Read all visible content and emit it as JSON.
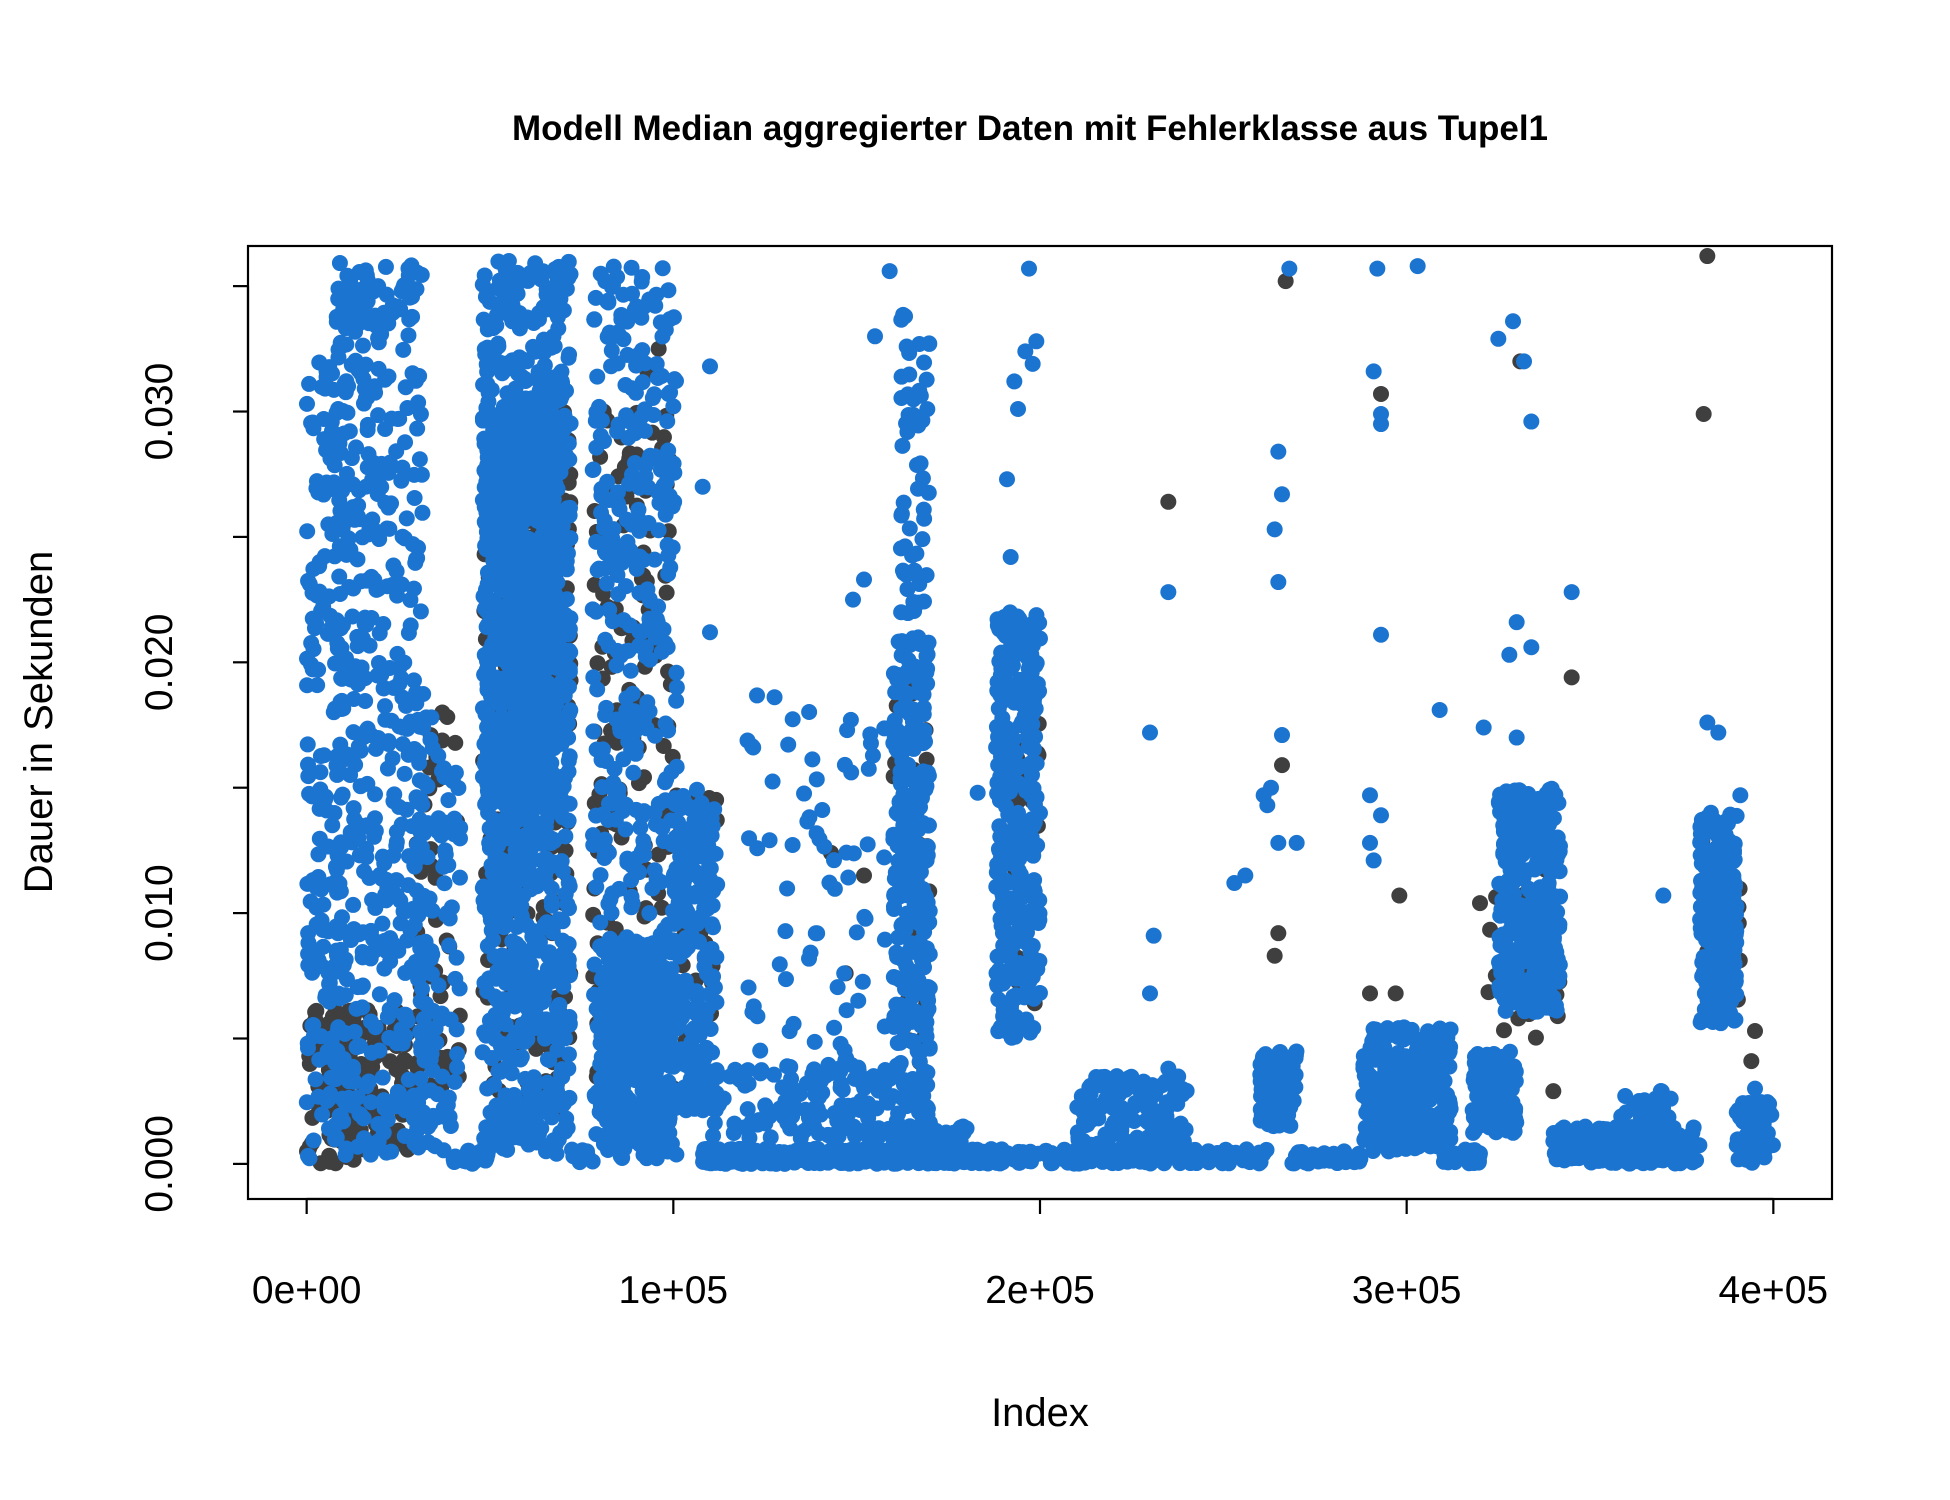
{
  "chart_data": {
    "type": "scatter",
    "title": "Modell  Median aggregierter Daten mit Fehlerklasse aus Tupel1",
    "xlabel": "Index",
    "ylabel": "Dauer in Sekunden",
    "xlim": [
      -16000,
      416000
    ],
    "ylim": [
      -0.0014,
      0.0366
    ],
    "x_ticks": [
      0,
      100000,
      200000,
      300000,
      400000
    ],
    "x_tick_labels": [
      "0e+00",
      "1e+05",
      "2e+05",
      "3e+05",
      "4e+05"
    ],
    "y_ticks": [
      0,
      0.005,
      0.01,
      0.015,
      0.02,
      0.025,
      0.03,
      0.035
    ],
    "y_tick_labels": [
      "0.000",
      "",
      "0.010",
      "",
      "0.020",
      "",
      "0.030",
      ""
    ],
    "colors": {
      "dark": "#3f3f3f",
      "blue": "#1b74d0"
    },
    "series": [
      {
        "color": "#3f3f3f",
        "clusters": [
          [
            0,
            30000,
            0,
            0.0062,
            170
          ],
          [
            30000,
            42000,
            0.003,
            0.018,
            45
          ],
          [
            48000,
            72000,
            0.002,
            0.03,
            260
          ],
          [
            78000,
            100000,
            0.003,
            0.03,
            140
          ],
          [
            100000,
            112000,
            0.004,
            0.015,
            35
          ],
          [
            160000,
            170000,
            0.003,
            0.02,
            35
          ],
          [
            190000,
            200000,
            0.006,
            0.02,
            30
          ],
          [
            322000,
            342000,
            0.005,
            0.013,
            35
          ],
          [
            380000,
            392000,
            0.006,
            0.013,
            25
          ]
        ],
        "points": [
          [
            235000,
            0.0264
          ],
          [
            345000,
            0.0194
          ],
          [
            381000,
            0.0299
          ],
          [
            382000,
            0.0362
          ],
          [
            267000,
            0.0352
          ],
          [
            293000,
            0.0307
          ],
          [
            298000,
            0.0107
          ],
          [
            297000,
            0.0068
          ],
          [
            290000,
            0.0068
          ],
          [
            395000,
            0.0053
          ],
          [
            394000,
            0.0041
          ],
          [
            331000,
            0.032
          ],
          [
            266000,
            0.0159
          ],
          [
            265000,
            0.0092
          ],
          [
            264000,
            0.0083
          ],
          [
            152000,
            0.0115
          ],
          [
            147000,
            0.0076
          ],
          [
            143000,
            0.0124
          ],
          [
            37000,
            0.018
          ],
          [
            81000,
            0.03
          ],
          [
            93000,
            0.0315
          ],
          [
            96000,
            0.0325
          ],
          [
            320000,
            0.0104
          ],
          [
            340000,
            0.0029
          ]
        ]
      },
      {
        "color": "#1b74d0",
        "clusters": [
          [
            0,
            10000,
            0.0002,
            0.032,
            190
          ],
          [
            8000,
            32000,
            0.0002,
            0.036,
            480
          ],
          [
            30000,
            42000,
            0.0002,
            0.018,
            110
          ],
          [
            40000,
            50000,
            0,
            0.0006,
            30
          ],
          [
            48000,
            72000,
            0.0004,
            0.036,
            1000
          ],
          [
            49000,
            68000,
            0.014,
            0.03,
            500
          ],
          [
            72000,
            78000,
            0,
            0.0006,
            20
          ],
          [
            78000,
            101000,
            0.0002,
            0.036,
            420
          ],
          [
            80000,
            100000,
            0.0005,
            0.009,
            350
          ],
          [
            100000,
            112000,
            0.002,
            0.015,
            200
          ],
          [
            108000,
            190000,
            0,
            0.0006,
            420
          ],
          [
            110000,
            160000,
            0.001,
            0.004,
            130
          ],
          [
            120000,
            158000,
            0.004,
            0.019,
            70
          ],
          [
            160000,
            170000,
            0.0005,
            0.021,
            340
          ],
          [
            162000,
            170000,
            0.021,
            0.034,
            55
          ],
          [
            170000,
            180000,
            0,
            0.0015,
            50
          ],
          [
            188000,
            200000,
            0.005,
            0.022,
            330
          ],
          [
            190000,
            200000,
            0.0,
            0.0005,
            20
          ],
          [
            200000,
            262000,
            0,
            0.0006,
            160
          ],
          [
            210000,
            240000,
            0.0005,
            0.0035,
            120
          ],
          [
            260000,
            270000,
            0.0015,
            0.0045,
            130
          ],
          [
            268000,
            288000,
            0,
            0.0005,
            50
          ],
          [
            288000,
            312000,
            0.0005,
            0.0055,
            280
          ],
          [
            310000,
            320000,
            0,
            0.0006,
            30
          ],
          [
            318000,
            330000,
            0.0012,
            0.0045,
            140
          ],
          [
            325000,
            342000,
            0.006,
            0.015,
            320
          ],
          [
            340000,
            380000,
            0,
            0.0015,
            190
          ],
          [
            358000,
            372000,
            0,
            0.003,
            50
          ],
          [
            380000,
            390000,
            0.0055,
            0.014,
            290
          ],
          [
            390000,
            400000,
            0,
            0.0025,
            60
          ]
        ],
        "points": [
          [
            265000,
            0.0284
          ],
          [
            266000,
            0.0267
          ],
          [
            264000,
            0.0253
          ],
          [
            265000,
            0.0232
          ],
          [
            263000,
            0.015
          ],
          [
            262000,
            0.0143
          ],
          [
            265000,
            0.0128
          ],
          [
            261000,
            0.0147
          ],
          [
            266000,
            0.0171
          ],
          [
            268000,
            0.0357
          ],
          [
            270000,
            0.0128
          ],
          [
            256000,
            0.0115
          ],
          [
            253000,
            0.0112
          ],
          [
            291000,
            0.0316
          ],
          [
            293000,
            0.0299
          ],
          [
            293000,
            0.0295
          ],
          [
            292000,
            0.0357
          ],
          [
            293000,
            0.0211
          ],
          [
            290000,
            0.0147
          ],
          [
            291000,
            0.0121
          ],
          [
            293000,
            0.0139
          ],
          [
            290000,
            0.0128
          ],
          [
            303000,
            0.0358
          ],
          [
            309000,
            0.0181
          ],
          [
            325000,
            0.0329
          ],
          [
            329000,
            0.0336
          ],
          [
            332000,
            0.032
          ],
          [
            334000,
            0.0296
          ],
          [
            330000,
            0.0216
          ],
          [
            334000,
            0.0206
          ],
          [
            328000,
            0.0203
          ],
          [
            345000,
            0.0228
          ],
          [
            321000,
            0.0174
          ],
          [
            330000,
            0.017
          ],
          [
            382000,
            0.0176
          ],
          [
            385000,
            0.0172
          ],
          [
            370000,
            0.0107
          ],
          [
            235000,
            0.0228
          ],
          [
            230000,
            0.0172
          ],
          [
            231000,
            0.0091
          ],
          [
            230000,
            0.0068
          ],
          [
            235000,
            0.0038
          ],
          [
            197000,
            0.0357
          ],
          [
            199000,
            0.0328
          ],
          [
            198000,
            0.0319
          ],
          [
            196000,
            0.0324
          ],
          [
            193000,
            0.0312
          ],
          [
            194000,
            0.0301
          ],
          [
            191000,
            0.0273
          ],
          [
            192000,
            0.0242
          ],
          [
            183000,
            0.0148
          ],
          [
            159000,
            0.0356
          ],
          [
            155000,
            0.033
          ],
          [
            152000,
            0.0233
          ],
          [
            149000,
            0.0225
          ],
          [
            110000,
            0.0318
          ],
          [
            108000,
            0.027
          ],
          [
            110000,
            0.0212
          ],
          [
            391000,
            0.0147
          ],
          [
            372000,
            0.0026
          ],
          [
            395000,
            0.003
          ],
          [
            396000,
            0.001
          ]
        ]
      }
    ]
  }
}
